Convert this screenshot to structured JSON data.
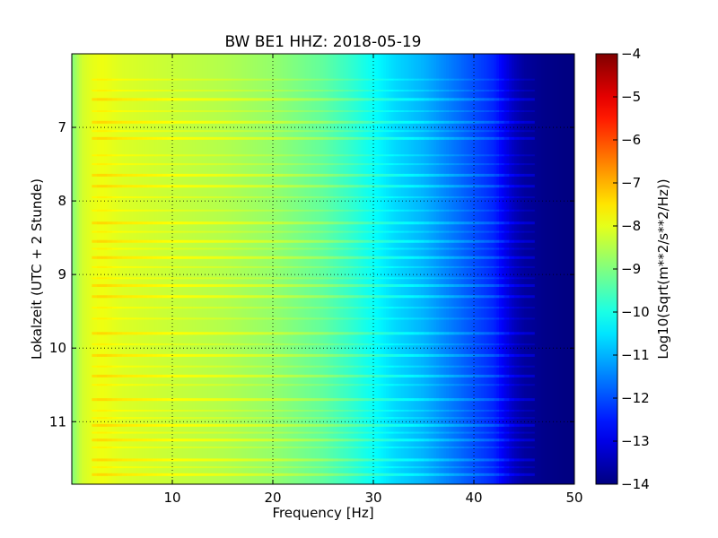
{
  "chart_data": {
    "type": "heatmap",
    "title": "BW BE1 HHZ: 2018-05-19",
    "xlabel": "Frequency [Hz]",
    "ylabel": "Lokalzeit (UTC + 2 Stunde)",
    "colorbar_label": "Log10(Sqrt(m**2/s**2/Hz))",
    "xlim": [
      0,
      50
    ],
    "ylim": [
      6.0,
      11.85
    ],
    "y_inverted": true,
    "x_ticks": [
      10,
      20,
      30,
      40,
      50
    ],
    "x_tick_labels": [
      "10",
      "20",
      "30",
      "40",
      "50"
    ],
    "y_ticks": [
      7,
      8,
      9,
      10,
      11
    ],
    "y_tick_labels": [
      "7",
      "8",
      "9",
      "10",
      "11"
    ],
    "colorbar_range": [
      -14,
      -4
    ],
    "colorbar_ticks": [
      -4,
      -5,
      -6,
      -7,
      -8,
      -9,
      -10,
      -11,
      -12,
      -13,
      -14
    ],
    "colorbar_tick_labels": [
      "−4",
      "−5",
      "−6",
      "−7",
      "−8",
      "−9",
      "−10",
      "−11",
      "−12",
      "−13",
      "−14"
    ],
    "colormap": "jet",
    "grid": "dotted at major ticks",
    "frequency_profile": {
      "frequency_hz": [
        0,
        1,
        2,
        3,
        5,
        10,
        15,
        20,
        25,
        28,
        30,
        32,
        35,
        38,
        40,
        42,
        43,
        44,
        45,
        47,
        50
      ],
      "log10_amplitude": [
        -9.0,
        -8.2,
        -8.0,
        -7.9,
        -8.1,
        -8.3,
        -8.5,
        -8.8,
        -9.3,
        -9.8,
        -10.2,
        -10.6,
        -11.0,
        -11.6,
        -12.0,
        -12.4,
        -12.9,
        -13.4,
        -13.7,
        -13.9,
        -14.0
      ]
    },
    "strong_bands_hours": [
      6.62,
      6.93,
      7.15,
      7.65,
      7.8,
      8.3,
      8.55,
      8.77,
      9.15,
      9.3,
      9.8,
      10.1,
      10.38,
      10.7,
      11.05,
      11.25,
      11.52,
      11.72
    ],
    "weak_bands_hours": [
      6.35,
      6.5,
      6.78,
      7.05,
      7.38,
      7.5,
      7.95,
      8.13,
      8.42,
      8.65,
      8.9,
      9.05,
      9.45,
      9.6,
      9.95,
      10.25,
      10.5,
      10.85,
      10.95,
      11.15,
      11.35,
      11.62
    ],
    "band_extra_log10": [
      0.55,
      0.3
    ]
  }
}
